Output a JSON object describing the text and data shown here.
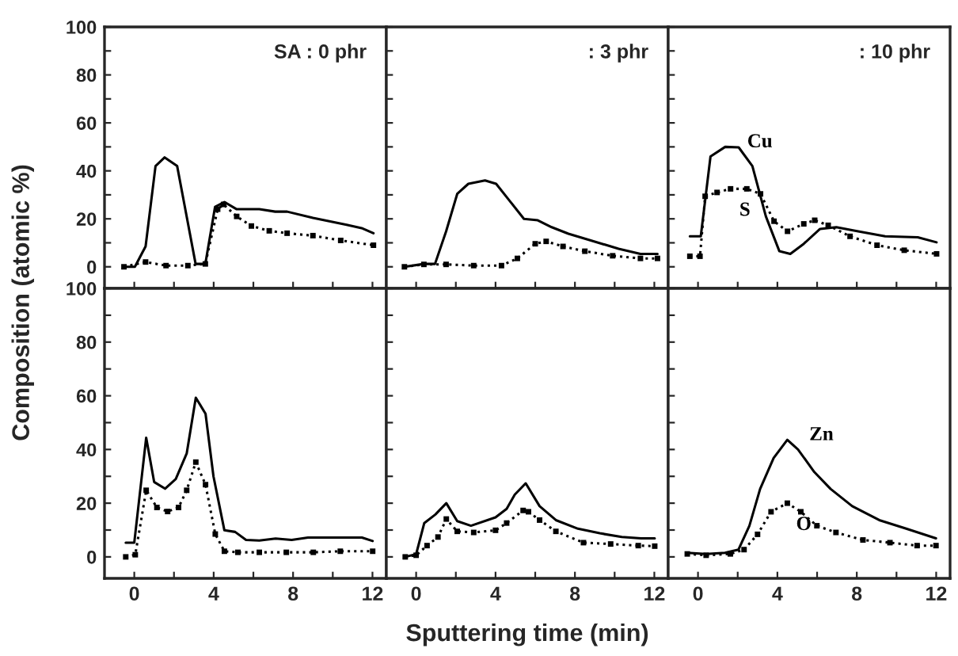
{
  "chart_data": [
    {
      "type": "line",
      "ylabel": "Composition (atomic %)",
      "annotations": [
        "SA : 0 phr"
      ],
      "xlim": [
        -1.5,
        12.7
      ],
      "ylim": [
        -9,
        100
      ],
      "xticks": [
        0,
        {
          "value": 2,
          "label": null
        },
        4,
        {
          "value": 6,
          "label": null
        },
        8,
        {
          "value": 10,
          "label": null
        },
        12
      ],
      "yticks": [
        0,
        {
          "value": 10,
          "label": null
        },
        20,
        {
          "value": 30,
          "label": null
        },
        40,
        {
          "value": 50,
          "label": null
        },
        60,
        {
          "value": 70,
          "label": null
        },
        80,
        {
          "value": 90,
          "label": null
        },
        100
      ],
      "tick_labels": "y",
      "series": [
        {
          "color": "#000000",
          "marker": "none",
          "line_style": "solid",
          "x": [
            -0.52,
            0.03,
            0.57,
            1.07,
            1.53,
            2.16,
            3.09,
            3.58,
            4.07,
            4.54,
            5.16,
            6.3,
            7.1,
            7.7,
            9.0,
            10.7,
            11.5,
            12.05
          ],
          "values": [
            0,
            0,
            8.5,
            42,
            45.6,
            42,
            1.2,
            1.2,
            25,
            27,
            24,
            24,
            23,
            23,
            20.4,
            17.5,
            16,
            14
          ]
        },
        {
          "color": "#000000",
          "marker": "square",
          "line_style": "dotted",
          "x": [
            -0.52,
            0.57,
            1.6,
            2.7,
            3.58,
            4.2,
            4.5,
            5.16,
            5.9,
            6.8,
            7.7,
            9.0,
            10.4,
            12.05
          ],
          "values": [
            0,
            2,
            0.5,
            0.5,
            1.2,
            24,
            26,
            21,
            17,
            15,
            14,
            13,
            11,
            9
          ]
        }
      ]
    },
    {
      "type": "line",
      "annotations": [
        ": 3 phr"
      ],
      "xlim": [
        -1.5,
        12.7
      ],
      "ylim": [
        -9,
        100
      ],
      "xticks": [
        0,
        {
          "value": 2,
          "label": null
        },
        4,
        {
          "value": 6,
          "label": null
        },
        8,
        {
          "value": 10,
          "label": null
        },
        12
      ],
      "yticks": [
        0,
        {
          "value": 10,
          "label": null
        },
        20,
        {
          "value": 30,
          "label": null
        },
        40,
        {
          "value": 50,
          "label": null
        },
        60,
        {
          "value": 70,
          "label": null
        },
        80,
        {
          "value": 90,
          "label": null
        },
        100
      ],
      "tick_labels": false,
      "series": [
        {
          "color": "#000000",
          "marker": "none",
          "line_style": "solid",
          "x": [
            -0.59,
            0.39,
            0.95,
            1.51,
            2.07,
            2.63,
            3.47,
            4.03,
            4.73,
            5.43,
            6.13,
            6.83,
            7.67,
            8.8,
            10.2,
            11.3,
            12.16
          ],
          "values": [
            0,
            1.2,
            1.2,
            14.8,
            30.4,
            34.6,
            36,
            34.6,
            27.3,
            20,
            19.4,
            16.5,
            13.8,
            11,
            7.5,
            5.4,
            5.4
          ]
        },
        {
          "color": "#000000",
          "marker": "square",
          "line_style": "dotted",
          "x": [
            -0.59,
            0.39,
            1.51,
            2.9,
            4.3,
            5.1,
            6.0,
            6.55,
            7.4,
            8.5,
            9.9,
            11.3,
            12.16
          ],
          "values": [
            0,
            1,
            1,
            0.5,
            0.5,
            3.5,
            9.6,
            10.6,
            8.5,
            6.5,
            4.6,
            3.5,
            3.5
          ]
        }
      ]
    },
    {
      "type": "line",
      "annotations": [
        ": 10 phr"
      ],
      "xlim": [
        -1.5,
        12.7
      ],
      "ylim": [
        -9,
        100
      ],
      "xticks": [
        0,
        {
          "value": 2,
          "label": null
        },
        4,
        {
          "value": 6,
          "label": null
        },
        8,
        {
          "value": 10,
          "label": null
        },
        12
      ],
      "yticks": [
        0,
        {
          "value": 10,
          "label": null
        },
        20,
        {
          "value": 30,
          "label": null
        },
        40,
        {
          "value": 50,
          "label": null
        },
        60,
        {
          "value": 70,
          "label": null
        },
        80,
        {
          "value": 90,
          "label": null
        },
        100
      ],
      "tick_labels": false,
      "series": [
        {
          "name": "Cu",
          "color": "#000000",
          "marker": "none",
          "line_style": "solid",
          "x": [
            -0.41,
            0.14,
            0.63,
            1.37,
            2.05,
            2.74,
            3.42,
            4.1,
            4.65,
            5.33,
            6.15,
            6.97,
            8.07,
            9.43,
            11.07,
            12.02
          ],
          "values": [
            12.7,
            12.7,
            46,
            50,
            49.8,
            42,
            21,
            6.5,
            5.4,
            9.6,
            15.8,
            16.5,
            14.8,
            12.7,
            12.3,
            10.2
          ]
        },
        {
          "name": "S",
          "color": "#000000",
          "marker": "square",
          "line_style": "dotted",
          "x": [
            -0.41,
            0.1,
            0.36,
            0.96,
            1.64,
            2.46,
            3.15,
            3.83,
            4.51,
            5.33,
            5.88,
            6.56,
            7.66,
            9.02,
            10.39,
            12.02
          ],
          "values": [
            4.4,
            4.4,
            29.4,
            31,
            32.5,
            32.5,
            30.4,
            19,
            14.8,
            17.9,
            19.4,
            17.3,
            12.7,
            9,
            6.9,
            5.4
          ]
        }
      ]
    },
    {
      "type": "line",
      "xlim": [
        -1.5,
        12.7
      ],
      "ylim": [
        -8,
        100
      ],
      "xticks": [
        0,
        {
          "value": 2,
          "label": null
        },
        4,
        {
          "value": 6,
          "label": null
        },
        8,
        {
          "value": 10,
          "label": null
        },
        12
      ],
      "yticks": [
        0,
        {
          "value": 10,
          "label": null
        },
        20,
        {
          "value": 30,
          "label": null
        },
        40,
        {
          "value": 50,
          "label": null
        },
        60,
        {
          "value": 70,
          "label": null
        },
        80,
        {
          "value": 90,
          "label": null
        },
        100
      ],
      "series": [
        {
          "color": "#000000",
          "marker": "none",
          "line_style": "solid",
          "x": [
            -0.43,
            0,
            0.6,
            1.0,
            1.55,
            2.09,
            2.64,
            3.1,
            3.59,
            3.99,
            4.54,
            5.08,
            5.63,
            6.3,
            7.12,
            7.93,
            8.75,
            10.38,
            11.47,
            12.01
          ],
          "values": [
            5.3,
            5.3,
            44.4,
            27.9,
            25.4,
            29,
            38.5,
            59.3,
            53.3,
            30,
            9.9,
            9.3,
            6.3,
            6.1,
            6.8,
            6.3,
            7.2,
            7.2,
            7.2,
            5.9
          ]
        },
        {
          "color": "#000000",
          "marker": "square",
          "line_style": "dotted",
          "x": [
            -0.43,
            0.05,
            0.6,
            1.14,
            1.68,
            2.23,
            2.64,
            3.1,
            3.59,
            4.08,
            4.54,
            5.22,
            6.3,
            7.66,
            9.02,
            10.38,
            12.01
          ],
          "values": [
            0,
            0.8,
            24.8,
            18.4,
            16.9,
            18.4,
            24.8,
            35.3,
            26.9,
            8.5,
            2.1,
            1.7,
            1.7,
            1.7,
            1.7,
            2.1,
            2.1
          ]
        }
      ]
    },
    {
      "type": "line",
      "xlabel": "Sputtering time (min)",
      "xlim": [
        -1.5,
        12.7
      ],
      "ylim": [
        -8,
        100
      ],
      "xticks": [
        0,
        {
          "value": 2,
          "label": null
        },
        4,
        {
          "value": 6,
          "label": null
        },
        8,
        {
          "value": 10,
          "label": null
        },
        12
      ],
      "yticks": [
        0,
        {
          "value": 10,
          "label": null
        },
        20,
        {
          "value": 30,
          "label": null
        },
        40,
        {
          "value": 50,
          "label": null
        },
        60,
        {
          "value": 70,
          "label": null
        },
        80,
        {
          "value": 90,
          "label": null
        },
        100
      ],
      "tick_labels": "x",
      "series": [
        {
          "color": "#000000",
          "marker": "none",
          "line_style": "solid",
          "x": [
            -0.55,
            0,
            0.41,
            0.97,
            1.52,
            2.07,
            2.76,
            4.0,
            4.56,
            4.97,
            5.52,
            6.22,
            7.04,
            8.15,
            9.25,
            10.36,
            11.33,
            12.02
          ],
          "values": [
            0,
            1,
            12.6,
            15.8,
            20,
            13.3,
            11.6,
            14.7,
            17.9,
            23.2,
            27.4,
            18.9,
            13.7,
            10.5,
            8.8,
            7.4,
            6.9,
            6.9
          ]
        },
        {
          "color": "#000000",
          "marker": "square",
          "line_style": "dotted",
          "x": [
            -0.55,
            0,
            0.55,
            1.1,
            1.52,
            2.07,
            2.9,
            4.0,
            4.56,
            5.39,
            5.66,
            6.22,
            7.04,
            8.43,
            9.8,
            11.19,
            12.02
          ],
          "values": [
            0,
            0.6,
            4.2,
            7.4,
            14.1,
            9.5,
            9.1,
            9.9,
            12.6,
            17.3,
            16.8,
            13.7,
            9.5,
            5.3,
            4.8,
            4.2,
            4
          ]
        }
      ]
    },
    {
      "type": "line",
      "xlim": [
        -1.5,
        12.7
      ],
      "ylim": [
        -8,
        100
      ],
      "xticks": [
        0,
        {
          "value": 2,
          "label": null
        },
        4,
        {
          "value": 6,
          "label": null
        },
        8,
        {
          "value": 10,
          "label": null
        },
        12
      ],
      "yticks": [
        0,
        {
          "value": 10,
          "label": null
        },
        20,
        {
          "value": 30,
          "label": null
        },
        40,
        {
          "value": 50,
          "label": null
        },
        60,
        {
          "value": 70,
          "label": null
        },
        80,
        {
          "value": 90,
          "label": null
        },
        100
      ],
      "tick_labels": "x",
      "series": [
        {
          "name": "Zn",
          "color": "#000000",
          "marker": "none",
          "line_style": "solid",
          "x": [
            -0.54,
            0.41,
            1.36,
            2.04,
            2.59,
            3.13,
            3.81,
            4.5,
            5.04,
            5.86,
            6.68,
            7.77,
            9.13,
            10.49,
            11.99
          ],
          "values": [
            1.5,
            1.1,
            1.5,
            2.7,
            11.6,
            25.3,
            36.8,
            43.6,
            40,
            31.6,
            25.3,
            18.9,
            13.7,
            10.5,
            6.9
          ]
        },
        {
          "name": "O",
          "color": "#000000",
          "marker": "square",
          "line_style": "dotted",
          "x": [
            -0.54,
            0.41,
            1.63,
            2.32,
            3.0,
            3.68,
            4.5,
            5.18,
            5.99,
            6.95,
            8.31,
            9.67,
            11.04,
            11.99
          ],
          "values": [
            1.1,
            0.6,
            1.1,
            2.7,
            8.4,
            16.8,
            20,
            16.8,
            11.6,
            9.1,
            6.3,
            5.3,
            4.2,
            4.2
          ]
        }
      ]
    }
  ]
}
